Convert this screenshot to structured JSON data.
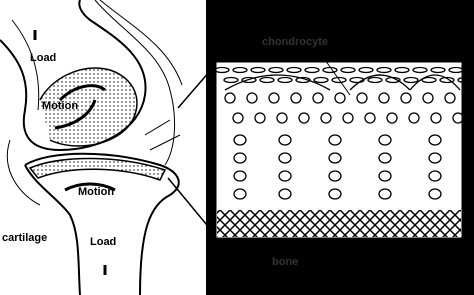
{
  "joint": {
    "labels": [
      "Load",
      "Motion",
      "Motion",
      "cartilage",
      "Load"
    ]
  },
  "tissue": {
    "labels": [
      "chondrocyte",
      "bone"
    ]
  }
}
